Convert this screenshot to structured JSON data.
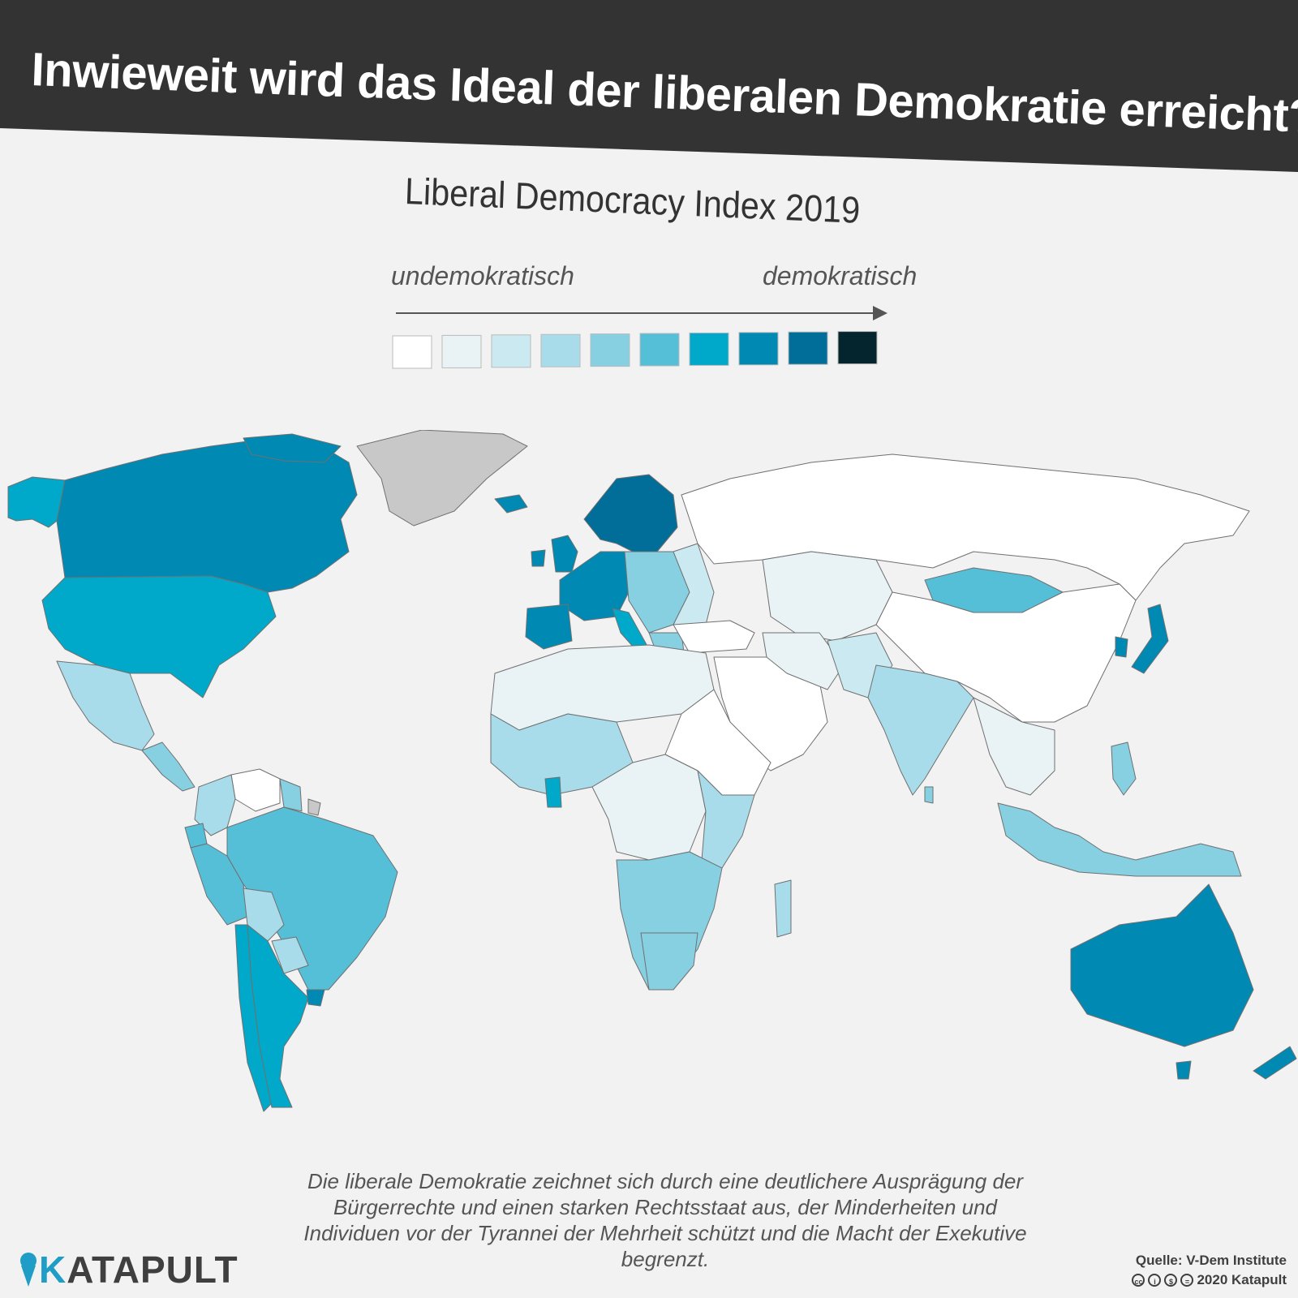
{
  "headline": "Inwieweit wird das Ideal der liberalen Demokratie erreicht?",
  "subtitle": "Liberal Democracy Index 2019",
  "legend": {
    "low_label": "undemokratisch",
    "high_label": "demokratisch",
    "scale_colors": [
      "#ffffff",
      "#e9f3f5",
      "#cbe9f0",
      "#a8dcea",
      "#86d0e2",
      "#55bfd8",
      "#00a9c9",
      "#0089b3",
      "#006e98",
      "#05252e"
    ]
  },
  "map": {
    "no_data_color": "#c8c8c8",
    "border_color": "#707070"
  },
  "description": "Die liberale Demokratie zeichnet sich durch eine deutlichere Ausprägung der Bürgerrechte und einen starken Rechtsstaat aus, der Minderheiten und Individuen vor der Tyrannei der Mehrheit schützt und die Macht der Exekutive begrenzt.",
  "logo": {
    "text_k": "K",
    "text_rest": "ATAPULT",
    "icon": "katapult-icon"
  },
  "source": {
    "line1": "Quelle: V-Dem Institute",
    "line2": "2020 Katapult",
    "license_icons": [
      "cc-icon",
      "by-icon",
      "nc-icon",
      "nd-icon"
    ]
  }
}
